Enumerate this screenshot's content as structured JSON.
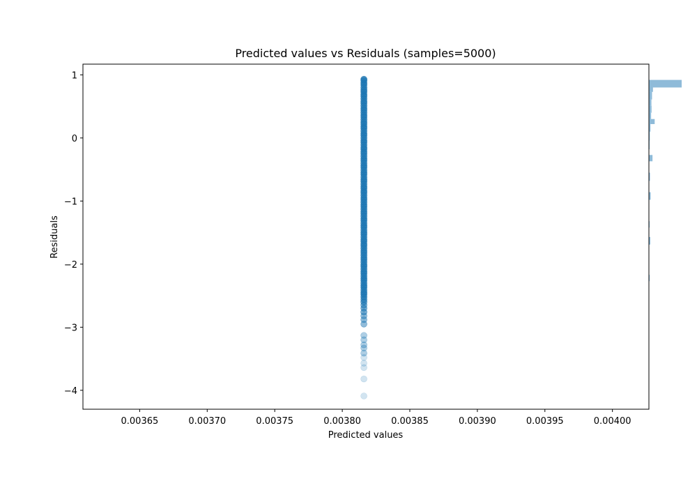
{
  "chart_data": {
    "type": "scatter",
    "title": "Predicted values vs Residuals (samples=5000)",
    "xlabel": "Predicted values",
    "ylabel": "Residuals",
    "xlim": [
      0.003608,
      0.004027
    ],
    "ylim": [
      -4.3,
      1.17
    ],
    "xticks": [
      {
        "value": 0.00365,
        "label": "0.00365"
      },
      {
        "value": 0.0037,
        "label": "0.00370"
      },
      {
        "value": 0.00375,
        "label": "0.00375"
      },
      {
        "value": 0.0038,
        "label": "0.00380"
      },
      {
        "value": 0.00385,
        "label": "0.00385"
      },
      {
        "value": 0.0039,
        "label": "0.00390"
      },
      {
        "value": 0.00395,
        "label": "0.00395"
      },
      {
        "value": 0.004,
        "label": "0.00400"
      }
    ],
    "yticks": [
      {
        "value": 1,
        "label": "1"
      },
      {
        "value": 0,
        "label": "0"
      },
      {
        "value": -1,
        "label": "−1"
      },
      {
        "value": -2,
        "label": "−2"
      },
      {
        "value": -3,
        "label": "−3"
      },
      {
        "value": -4,
        "label": "−4"
      }
    ],
    "marker_color": "#1f77b4",
    "marker_alpha": 0.2,
    "series": [
      {
        "x_constant": 0.003816,
        "y": [
          0.93,
          0.91,
          0.87,
          0.84,
          0.8,
          0.76,
          0.73,
          0.69,
          0.66,
          0.62,
          0.58,
          0.55,
          0.51,
          0.47,
          0.44,
          0.4,
          0.36,
          0.33,
          0.29,
          0.25,
          0.22,
          0.18,
          0.15,
          0.11,
          0.07,
          0.04,
          0.0,
          -0.04,
          -0.07,
          -0.11,
          -0.15,
          -0.18,
          -0.22,
          -0.25,
          -0.29,
          -0.33,
          -0.36,
          -0.4,
          -0.44,
          -0.47,
          -0.51,
          -0.55,
          -0.58,
          -0.62,
          -0.66,
          -0.69,
          -0.73,
          -0.77,
          -0.8,
          -0.84,
          -0.87,
          -0.91,
          -0.95,
          -0.98,
          -1.02,
          -1.06,
          -1.09,
          -1.13,
          -1.17,
          -1.2,
          -1.24,
          -1.28,
          -1.31,
          -1.35,
          -1.39,
          -1.42,
          -1.46,
          -1.5,
          -1.53,
          -1.57,
          -1.61,
          -1.64,
          -1.68,
          -1.71,
          -1.75,
          -1.79,
          -1.82,
          -1.86,
          -1.9,
          -1.93,
          -1.97,
          -2.01,
          -2.04,
          -2.08,
          -2.12,
          -2.15,
          -2.19,
          -2.23,
          -2.26,
          -2.3,
          -2.34,
          -2.37,
          -2.41,
          -2.45,
          -2.48,
          -2.52,
          -2.56,
          -2.6,
          -2.65,
          -2.7,
          -2.76,
          -2.82,
          -2.88,
          -2.95,
          -3.13,
          -3.2,
          -3.28,
          -3.33,
          -3.41,
          -3.48,
          -3.57,
          -3.64,
          -3.82,
          -4.09
        ],
        "emphasis": [
          6,
          6,
          6,
          6,
          6,
          6,
          6,
          6,
          6,
          6,
          6,
          6,
          6,
          6,
          6,
          6,
          6,
          6,
          6,
          6,
          6,
          6,
          6,
          6,
          6,
          6,
          6,
          6,
          6,
          6,
          6,
          6,
          6,
          6,
          6,
          6,
          6,
          6,
          6,
          6,
          6,
          6,
          6,
          6,
          6,
          6,
          6,
          6,
          6,
          6,
          6,
          6,
          6,
          6,
          6,
          6,
          6,
          6,
          6,
          6,
          6,
          6,
          6,
          6,
          6,
          6,
          6,
          6,
          6,
          6,
          6,
          6,
          6,
          6,
          6,
          6,
          6,
          6,
          6,
          6,
          6,
          6,
          6,
          6,
          6,
          6,
          6,
          6,
          6,
          6,
          6,
          6,
          6,
          6,
          6,
          6,
          5,
          5,
          4,
          4,
          4,
          3,
          3,
          3,
          2,
          2,
          2,
          2,
          2,
          1,
          1,
          1,
          1,
          1
        ]
      }
    ],
    "marginal_histogram": {
      "orientation": "horizontal",
      "color": "#1f77b4",
      "alpha": 0.5,
      "bins": [
        {
          "y0": 0.8,
          "y1": 0.92,
          "count": 2100
        },
        {
          "y0": 0.73,
          "y1": 0.8,
          "count": 260
        },
        {
          "y0": 0.61,
          "y1": 0.73,
          "count": 200
        },
        {
          "y0": 0.51,
          "y1": 0.61,
          "count": 160
        },
        {
          "y0": 0.4,
          "y1": 0.51,
          "count": 170
        },
        {
          "y0": 0.3,
          "y1": 0.4,
          "count": 140
        },
        {
          "y0": 0.22,
          "y1": 0.3,
          "count": 370
        },
        {
          "y0": 0.1,
          "y1": 0.22,
          "count": 100
        },
        {
          "y0": -0.04,
          "y1": 0.1,
          "count": 60
        },
        {
          "y0": -0.18,
          "y1": -0.04,
          "count": 40
        },
        {
          "y0": -0.37,
          "y1": -0.27,
          "count": 230
        },
        {
          "y0": -0.68,
          "y1": -0.55,
          "count": 70
        },
        {
          "y0": -0.98,
          "y1": -0.86,
          "count": 110
        },
        {
          "y0": -1.42,
          "y1": -1.32,
          "count": 40
        },
        {
          "y0": -1.69,
          "y1": -1.57,
          "count": 90
        },
        {
          "y0": -2.27,
          "y1": -2.17,
          "count": 50
        }
      ]
    }
  }
}
